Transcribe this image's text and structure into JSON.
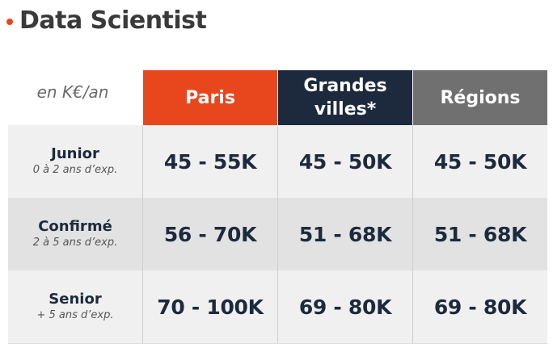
{
  "title": "Data Scientist",
  "unit_label": "en K€/an",
  "columns": [
    {
      "label": "Paris",
      "color": "#e8471d"
    },
    {
      "label": "Grandes villes*",
      "line1": "Grandes",
      "line2": "villes*",
      "color": "#1d2a3d"
    },
    {
      "label": "Régions",
      "color": "#707070"
    }
  ],
  "rows": [
    {
      "level": "Junior",
      "experience": "0 à 2 ans d’exp.",
      "values": [
        "45 - 55K",
        "45 - 50K",
        "45 - 50K"
      ]
    },
    {
      "level": "Confirmé",
      "experience": "2 à 5 ans d’exp.",
      "values": [
        "56 - 70K",
        "51 - 68K",
        "51 - 68K"
      ]
    },
    {
      "level": "Senior",
      "experience": "+ 5 ans d’exp.",
      "values": [
        "70 - 100K",
        "69 - 80K",
        "69 - 80K"
      ]
    }
  ]
}
